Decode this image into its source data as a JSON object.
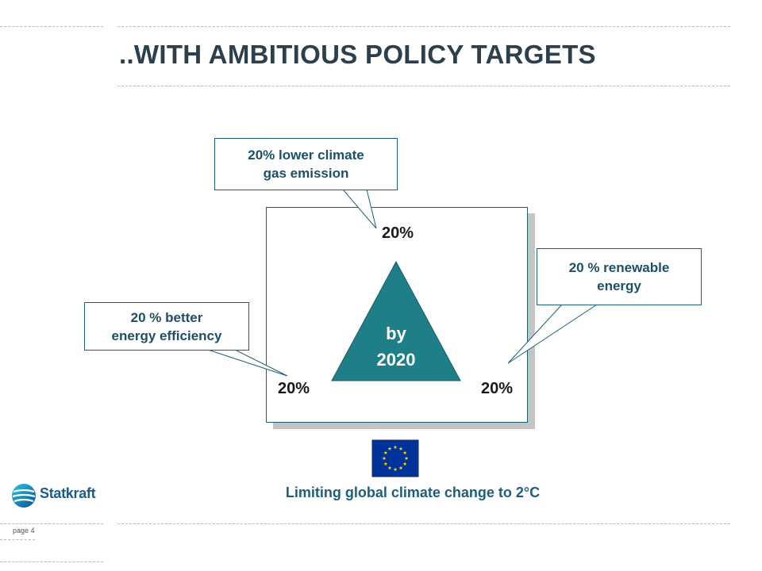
{
  "slide": {
    "title": "..WITH AMBITIOUS POLICY TARGETS",
    "page_label": "page 4"
  },
  "diagram": {
    "triangle_text_line1": "by",
    "triangle_text_line2": "2020",
    "corner_top": "20%",
    "corner_left": "20%",
    "corner_right": "20%",
    "triangle_color": "#1f7f88",
    "callouts": {
      "emission": [
        "20% lower climate",
        "gas emission"
      ],
      "renewable": [
        "20 % renewable",
        "energy"
      ],
      "efficiency": [
        "20 % better",
        "energy efficiency"
      ]
    },
    "caption": "Limiting global climate change to 2°C"
  },
  "logo": {
    "name": "Statkraft",
    "icon": "statkraft-logo-icon"
  },
  "flag": {
    "icon": "eu-flag-icon",
    "color_field": "#003399",
    "color_stars": "#ffcc00"
  }
}
